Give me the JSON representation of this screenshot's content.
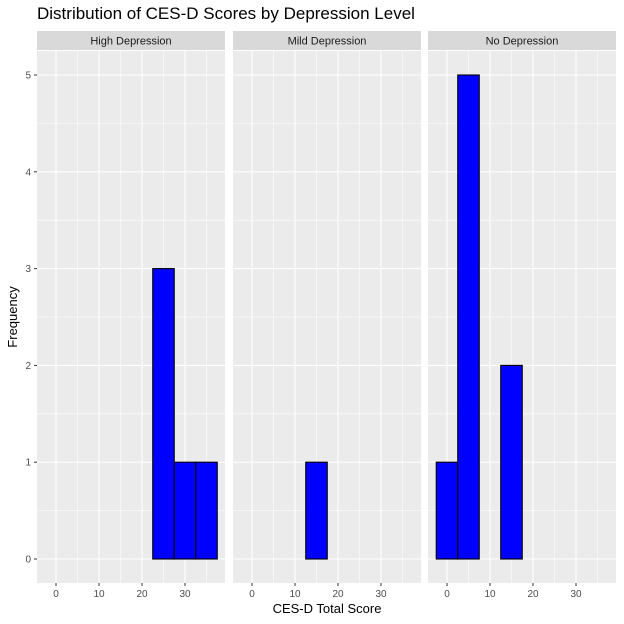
{
  "chart_data": {
    "type": "bar",
    "title": "Distribution of CES-D Scores by Depression Level",
    "xlabel": "CES-D Total Score",
    "ylabel": "Frequency",
    "xlim": [
      -2.5,
      37.5
    ],
    "ylim": [
      0,
      5
    ],
    "x_ticks": [
      0,
      10,
      20,
      30
    ],
    "y_ticks": [
      0,
      1,
      2,
      3,
      4,
      5
    ],
    "grid": true,
    "bin_width": 5,
    "bin_starts": [
      -2.5,
      2.5,
      7.5,
      12.5,
      17.5,
      22.5,
      27.5,
      32.5
    ],
    "bar_fill": "#0000ff",
    "bar_outline": "#000000",
    "panel_background": "#ebebeb",
    "strip_background": "#d9d9d9",
    "panels": [
      {
        "label": "High Depression",
        "counts": [
          0,
          0,
          0,
          0,
          0,
          3,
          1,
          1
        ]
      },
      {
        "label": "Mild Depression",
        "counts": [
          0,
          0,
          0,
          1,
          0,
          0,
          0,
          0
        ]
      },
      {
        "label": "No Depression",
        "counts": [
          1,
          5,
          0,
          2,
          0,
          0,
          0,
          0
        ]
      }
    ]
  }
}
